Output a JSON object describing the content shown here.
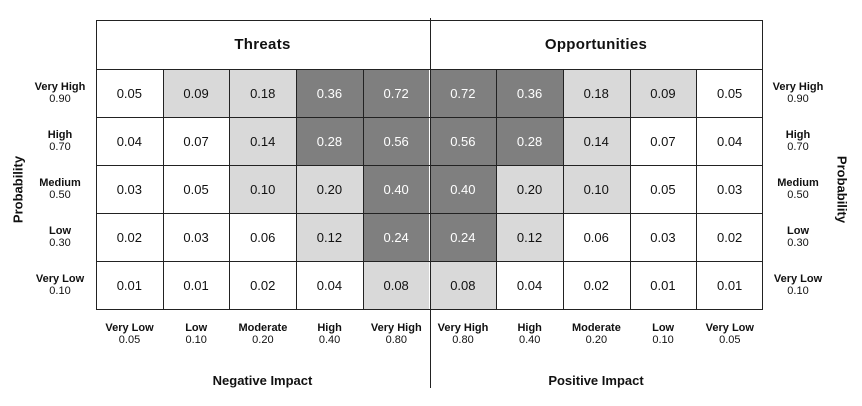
{
  "headers": {
    "threats": "Threats",
    "opportunities": "Opportunities"
  },
  "axis": {
    "probability_left": "Probability",
    "probability_right": "Probability",
    "negative_impact": "Negative Impact",
    "positive_impact": "Positive Impact"
  },
  "rows": [
    {
      "name": "Very High",
      "value": "0.90"
    },
    {
      "name": "High",
      "value": "0.70"
    },
    {
      "name": "Medium",
      "value": "0.50"
    },
    {
      "name": "Low",
      "value": "0.30"
    },
    {
      "name": "Very Low",
      "value": "0.10"
    }
  ],
  "columns": [
    {
      "name": "Very Low",
      "value": "0.05"
    },
    {
      "name": "Low",
      "value": "0.10"
    },
    {
      "name": "Moderate",
      "value": "0.20"
    },
    {
      "name": "High",
      "value": "0.40"
    },
    {
      "name": "Very High",
      "value": "0.80"
    },
    {
      "name": "Very High",
      "value": "0.80"
    },
    {
      "name": "High",
      "value": "0.40"
    },
    {
      "name": "Moderate",
      "value": "0.20"
    },
    {
      "name": "Low",
      "value": "0.10"
    },
    {
      "name": "Very Low",
      "value": "0.05"
    }
  ],
  "cells": [
    [
      "0.05",
      "0.09",
      "0.18",
      "0.36",
      "0.72",
      "0.72",
      "0.36",
      "0.18",
      "0.09",
      "0.05"
    ],
    [
      "0.04",
      "0.07",
      "0.14",
      "0.28",
      "0.56",
      "0.56",
      "0.28",
      "0.14",
      "0.07",
      "0.04"
    ],
    [
      "0.03",
      "0.05",
      "0.10",
      "0.20",
      "0.40",
      "0.40",
      "0.20",
      "0.10",
      "0.05",
      "0.03"
    ],
    [
      "0.02",
      "0.03",
      "0.06",
      "0.12",
      "0.24",
      "0.24",
      "0.12",
      "0.06",
      "0.03",
      "0.02"
    ],
    [
      "0.01",
      "0.01",
      "0.02",
      "0.04",
      "0.08",
      "0.08",
      "0.04",
      "0.02",
      "0.01",
      "0.01"
    ]
  ],
  "shading": [
    [
      0,
      1,
      1,
      2,
      2,
      2,
      2,
      1,
      1,
      0
    ],
    [
      0,
      0,
      1,
      2,
      2,
      2,
      2,
      1,
      0,
      0
    ],
    [
      0,
      0,
      1,
      1,
      2,
      2,
      1,
      1,
      0,
      0
    ],
    [
      0,
      0,
      0,
      1,
      2,
      2,
      1,
      0,
      0,
      0
    ],
    [
      0,
      0,
      0,
      0,
      1,
      1,
      0,
      0,
      0,
      0
    ]
  ],
  "colors": {
    "low": "#ffffff",
    "medium": "#d9d9d9",
    "high": "#7f7f7f"
  }
}
